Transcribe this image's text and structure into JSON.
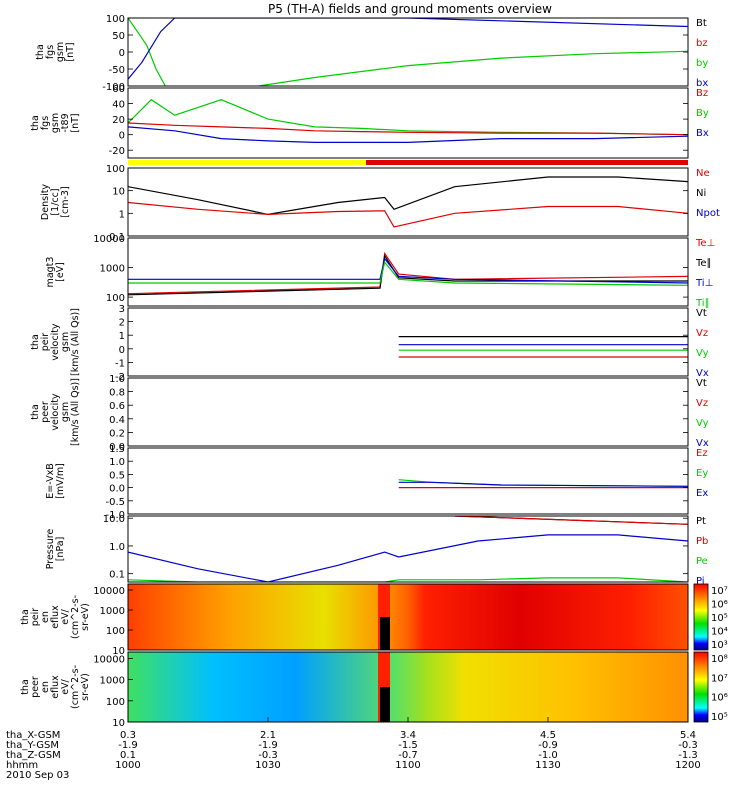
{
  "title": "P5 (TH-A) fields and ground moments overview",
  "colors": {
    "black": "#000000",
    "red": "#e00000",
    "green": "#00cc00",
    "blue": "#0000cc",
    "yellow": "#ffff00"
  },
  "chart_data": [
    {
      "type": "line",
      "ylabel": [
        "tha",
        "fgs",
        "gsm",
        "[nT]"
      ],
      "ylim": [
        -100,
        100
      ],
      "yticks": [
        "100",
        "50",
        "0",
        "-50",
        "-100"
      ],
      "yscale": "linear",
      "legend": [
        {
          "label": "Bt",
          "color": "#000000"
        },
        {
          "label": "bz",
          "color": "#e00000"
        },
        {
          "label": "by",
          "color": "#00cc00"
        },
        {
          "label": "bx",
          "color": "#0000cc"
        }
      ],
      "series": [
        {
          "name": "by",
          "x": [
            "10:00",
            "10:04",
            "10:06",
            "10:08"
          ],
          "values": [
            100,
            20,
            -50,
            -100
          ]
        },
        {
          "name": "by",
          "x": [
            "10:28",
            "10:40",
            "11:00",
            "11:20",
            "11:40",
            "12:00"
          ],
          "values": [
            -100,
            -75,
            -40,
            -18,
            -5,
            2
          ]
        },
        {
          "name": "bx",
          "x": [
            "10:00",
            "10:03",
            "10:07",
            "10:10",
            "10:14",
            "11:00",
            "12:00"
          ],
          "values": [
            -80,
            -30,
            60,
            100,
            100,
            100,
            75
          ]
        }
      ]
    },
    {
      "type": "line",
      "ylabel": [
        "tha",
        "fgs",
        "gsm",
        "-t89",
        "[nT]"
      ],
      "ylim": [
        -30,
        60
      ],
      "yticks": [
        "60",
        "40",
        "20",
        "0",
        "-20"
      ],
      "yscale": "linear",
      "legend": [
        {
          "label": "Bz",
          "color": "#e00000"
        },
        {
          "label": "By",
          "color": "#00cc00"
        },
        {
          "label": "Bx",
          "color": "#0000cc"
        }
      ],
      "series": [
        {
          "name": "By",
          "x": [
            "10:00",
            "10:05",
            "10:10",
            "10:20",
            "10:30",
            "10:40",
            "10:50",
            "11:00",
            "11:20",
            "11:40",
            "12:00"
          ],
          "values": [
            15,
            45,
            25,
            45,
            20,
            10,
            8,
            5,
            3,
            2,
            0
          ]
        },
        {
          "name": "Bz",
          "x": [
            "10:00",
            "10:10",
            "10:20",
            "10:30",
            "10:40",
            "10:50",
            "11:00",
            "11:20",
            "11:40",
            "12:00"
          ],
          "values": [
            15,
            12,
            10,
            8,
            5,
            4,
            3,
            2,
            2,
            0
          ]
        },
        {
          "name": "Bx",
          "x": [
            "10:00",
            "10:10",
            "10:20",
            "10:30",
            "10:40",
            "10:50",
            "11:00",
            "11:20",
            "11:40",
            "12:00"
          ],
          "values": [
            10,
            5,
            -5,
            -8,
            -10,
            -10,
            -10,
            -5,
            -5,
            -2
          ]
        }
      ],
      "status_bar": [
        {
          "from": "10:00",
          "to": "10:51",
          "color": "#ffff00"
        },
        {
          "from": "10:51",
          "to": "12:00",
          "color": "#e00000"
        }
      ]
    },
    {
      "type": "line",
      "ylabel": [
        "Density",
        "[1/cc]",
        "[cm-3]"
      ],
      "ylim": [
        0.1,
        100
      ],
      "yticks": [
        "100",
        "10",
        "1",
        "0.1"
      ],
      "yscale": "log",
      "legend": [
        {
          "label": "Ne",
          "color": "#e00000"
        },
        {
          "label": "Ni",
          "color": "#000000"
        },
        {
          "label": "Npot",
          "color": "#0000cc"
        }
      ],
      "series": [
        {
          "name": "Ni",
          "x": [
            "10:00",
            "10:15",
            "10:30",
            "10:45",
            "10:55",
            "10:57",
            "11:10",
            "11:30",
            "11:45",
            "12:00"
          ],
          "values": [
            15,
            4,
            0.9,
            3,
            5,
            1.5,
            15,
            40,
            40,
            25
          ]
        },
        {
          "name": "Ne",
          "x": [
            "10:00",
            "10:15",
            "10:30",
            "10:45",
            "10:55",
            "10:57",
            "11:10",
            "11:30",
            "11:45",
            "12:00"
          ],
          "values": [
            3,
            1.5,
            0.9,
            1.2,
            1.3,
            0.25,
            1,
            2,
            2,
            1
          ]
        }
      ]
    },
    {
      "type": "line",
      "ylabel": [
        "magt3",
        "[eV]"
      ],
      "ylim": [
        50,
        10000
      ],
      "yticks": [
        "10000",
        "1000",
        "100"
      ],
      "yscale": "log",
      "legend": [
        {
          "label": "Te⊥",
          "color": "#e00000"
        },
        {
          "label": "Te∥",
          "color": "#000000"
        },
        {
          "label": "Ti⊥",
          "color": "#0000cc"
        },
        {
          "label": "Ti∥",
          "color": "#00cc00"
        }
      ],
      "series": [
        {
          "name": "Te⊥",
          "x": [
            "10:00",
            "10:54",
            "10:55",
            "10:58",
            "11:10",
            "12:00"
          ],
          "values": [
            130,
            220,
            3000,
            600,
            400,
            500
          ]
        },
        {
          "name": "Te∥",
          "x": [
            "10:00",
            "10:54",
            "10:55",
            "10:58",
            "11:10",
            "12:00"
          ],
          "values": [
            120,
            200,
            2500,
            450,
            350,
            350
          ]
        },
        {
          "name": "Ti⊥",
          "x": [
            "10:00",
            "10:54",
            "10:55",
            "10:58",
            "11:10",
            "12:00"
          ],
          "values": [
            400,
            400,
            2000,
            500,
            400,
            300
          ]
        },
        {
          "name": "Ti∥",
          "x": [
            "10:00",
            "10:54",
            "10:55",
            "10:58",
            "11:10",
            "12:00"
          ],
          "values": [
            300,
            300,
            1500,
            400,
            300,
            250
          ]
        }
      ]
    },
    {
      "type": "line",
      "ylabel": [
        "tha",
        "peir",
        "velocity",
        "gsm",
        "[km/s (All Qs)]"
      ],
      "ylim": [
        -2,
        3
      ],
      "yticks": [
        "3",
        "2",
        "1",
        "0",
        "-1",
        "-2"
      ],
      "yscale": "linear",
      "legend": [
        {
          "label": "Vt",
          "color": "#000000"
        },
        {
          "label": "Vz",
          "color": "#e00000"
        },
        {
          "label": "Vy",
          "color": "#00cc00"
        },
        {
          "label": "Vx",
          "color": "#0000cc"
        }
      ],
      "series": [
        {
          "name": "Vt",
          "x": [
            "10:58",
            "12:00"
          ],
          "values": [
            0.9,
            0.9
          ]
        },
        {
          "name": "Vx",
          "x": [
            "10:58",
            "12:00"
          ],
          "values": [
            0.3,
            0.3
          ]
        },
        {
          "name": "Vy",
          "x": [
            "10:58",
            "12:00"
          ],
          "values": [
            -0.1,
            -0.1
          ]
        },
        {
          "name": "Vz",
          "x": [
            "10:58",
            "12:00"
          ],
          "values": [
            -0.6,
            -0.6
          ]
        }
      ]
    },
    {
      "type": "line",
      "ylabel": [
        "tha",
        "peer",
        "velocity",
        "gsm",
        "[km/s (All Qs)]"
      ],
      "ylim": [
        0,
        1
      ],
      "yticks": [
        "1.0",
        "0.8",
        "0.6",
        "0.4",
        "0.2",
        "0.0"
      ],
      "yscale": "linear",
      "legend": [
        {
          "label": "Vt",
          "color": "#000000"
        },
        {
          "label": "Vz",
          "color": "#e00000"
        },
        {
          "label": "Vy",
          "color": "#00cc00"
        },
        {
          "label": "Vx",
          "color": "#0000cc"
        }
      ],
      "series": []
    },
    {
      "type": "line",
      "ylabel": [
        "E=-VxB",
        "[mV/m]"
      ],
      "ylim": [
        -1,
        1.5
      ],
      "yticks": [
        "1.5",
        "1.0",
        "0.5",
        "0.0",
        "-0.5",
        "-1.0"
      ],
      "yscale": "linear",
      "legend": [
        {
          "label": "Ez",
          "color": "#e00000"
        },
        {
          "label": "Ey",
          "color": "#00cc00"
        },
        {
          "label": "Ex",
          "color": "#0000cc"
        }
      ],
      "series": [
        {
          "name": "Ey",
          "x": [
            "10:58",
            "11:05",
            "11:20",
            "12:00"
          ],
          "values": [
            0.3,
            0.2,
            0.1,
            0.05
          ]
        },
        {
          "name": "Ex",
          "x": [
            "10:58",
            "11:05",
            "11:20",
            "12:00"
          ],
          "values": [
            0.2,
            0.2,
            0.1,
            0.05
          ]
        },
        {
          "name": "Ez",
          "x": [
            "10:58",
            "11:05",
            "11:20",
            "12:00"
          ],
          "values": [
            0.0,
            0.0,
            0.0,
            0.0
          ]
        }
      ]
    },
    {
      "type": "line",
      "ylabel": [
        "Pressure",
        "[nPa]"
      ],
      "ylim": [
        0.05,
        12
      ],
      "yticks": [
        "10.0",
        "1.0",
        "0.1"
      ],
      "yscale": "log",
      "legend": [
        {
          "label": "Pt",
          "color": "#000000"
        },
        {
          "label": "Pb",
          "color": "#e00000"
        },
        {
          "label": "Pe",
          "color": "#00cc00"
        },
        {
          "label": "Pi",
          "color": "#0000cc"
        }
      ],
      "series": [
        {
          "name": "Pt",
          "x": [
            "11:10",
            "12:00"
          ],
          "values": [
            12,
            6
          ]
        },
        {
          "name": "Pb",
          "x": [
            "11:10",
            "12:00"
          ],
          "values": [
            12,
            6
          ]
        },
        {
          "name": "Pi",
          "x": [
            "10:00",
            "10:15",
            "10:30",
            "10:45",
            "10:55",
            "10:58",
            "11:15",
            "11:30",
            "11:45",
            "12:00"
          ],
          "values": [
            0.6,
            0.15,
            0.05,
            0.2,
            0.6,
            0.4,
            1.5,
            2.5,
            2.5,
            1.5
          ]
        },
        {
          "name": "Pe",
          "x": [
            "10:00",
            "10:15",
            "10:30",
            "10:45",
            "10:55",
            "10:58",
            "11:15",
            "11:30",
            "11:45",
            "12:00"
          ],
          "values": [
            0.06,
            0.05,
            0.05,
            0.05,
            0.05,
            0.06,
            0.06,
            0.07,
            0.07,
            0.05
          ]
        }
      ]
    },
    {
      "type": "heatmap",
      "ylabel": [
        "tha",
        "peir",
        "en",
        "eflux",
        "eV/",
        "(cm^2-s-",
        "sr-eV)"
      ],
      "ylim": [
        10,
        20000
      ],
      "yticks": [
        "10000",
        "1000",
        "100",
        "10"
      ],
      "yscale": "log",
      "colorbar_ticks": [
        "10⁷",
        "10⁶",
        "10⁵",
        "10⁴",
        "10³"
      ]
    },
    {
      "type": "heatmap",
      "ylabel": [
        "tha",
        "peer",
        "en",
        "eflux",
        "eV/",
        "(cm^2-s-",
        "sr-eV)"
      ],
      "ylim": [
        10,
        20000
      ],
      "yticks": [
        "10000",
        "1000",
        "100",
        "10"
      ],
      "yscale": "log",
      "colorbar_ticks": [
        "10⁸",
        "10⁷",
        "10⁶",
        "10⁵"
      ]
    }
  ],
  "xaxis": {
    "range": [
      "10:00",
      "12:00"
    ],
    "rows": [
      {
        "label": "tha_X-GSM",
        "values": [
          "0.3",
          "2.1",
          "3.4",
          "4.5",
          "5.4"
        ]
      },
      {
        "label": "tha_Y-GSM",
        "values": [
          "-1.9",
          "-1.9",
          "-1.5",
          "-0.9",
          "-0.3"
        ]
      },
      {
        "label": "tha_Z-GSM",
        "values": [
          "0.1",
          "-0.3",
          "-0.7",
          "-1.0",
          "-1.3"
        ]
      },
      {
        "label": "hhmm",
        "values": [
          "1000",
          "1030",
          "1100",
          "1130",
          "1200"
        ]
      }
    ],
    "date": "2010 Sep 03"
  }
}
